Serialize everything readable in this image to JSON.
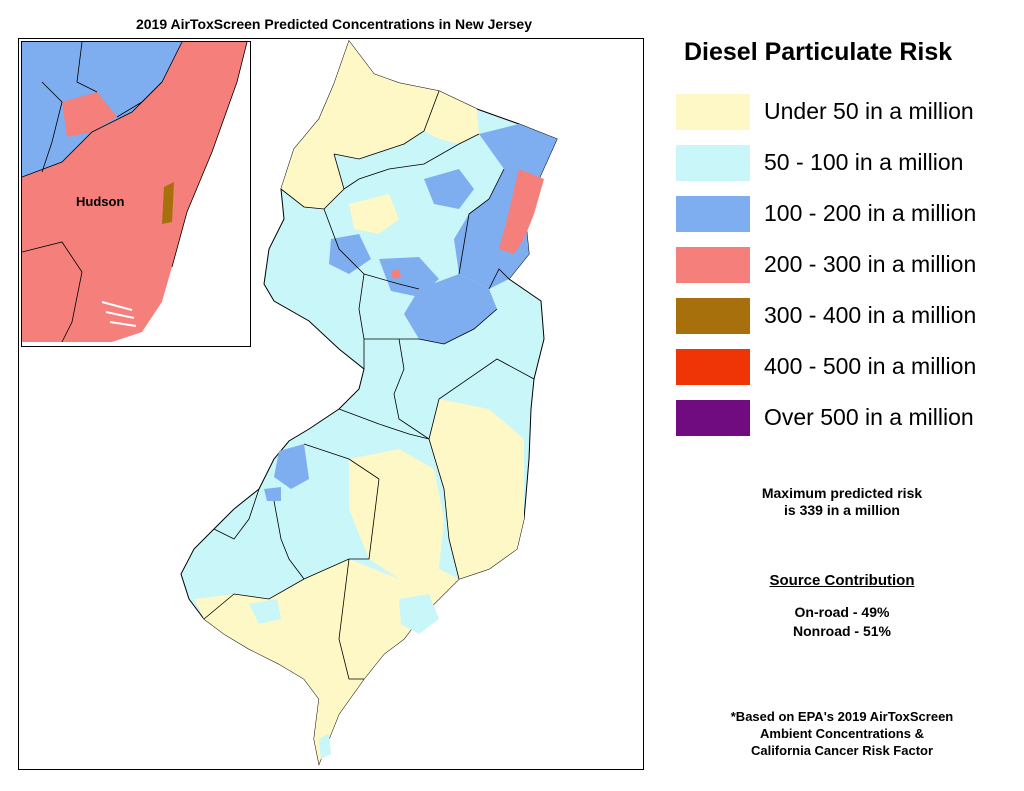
{
  "map": {
    "title": "2019 AirToxScreen Predicted Concentrations in New Jersey",
    "inset_label": "Hudson"
  },
  "legend": {
    "title": "Diesel Particulate Risk",
    "items": [
      {
        "label": "Under 50 in a million",
        "color": "#fef7c6"
      },
      {
        "label": "50 - 100 in a million",
        "color": "#c9f6f8"
      },
      {
        "label": "100 - 200 in a million",
        "color": "#7eaeef"
      },
      {
        "label": "200 - 300 in a million",
        "color": "#f57f7b"
      },
      {
        "label": "300 - 400 in a million",
        "color": "#a8700c"
      },
      {
        "label": "400 - 500 in a million",
        "color": "#ef3406"
      },
      {
        "label": "Over 500 in a million",
        "color": "#700c80"
      }
    ]
  },
  "notes": {
    "max_risk_line1": "Maximum predicted risk",
    "max_risk_line2": "is 339 in a million",
    "source_title": "Source Contribution",
    "onroad": "On-road - 49%",
    "nonroad": "Nonroad - 51%",
    "footnote_line1": "*Based on EPA's 2019 AirToxScreen",
    "footnote_line2": "Ambient Concentrations &",
    "footnote_line3": "California Cancer Risk Factor"
  }
}
